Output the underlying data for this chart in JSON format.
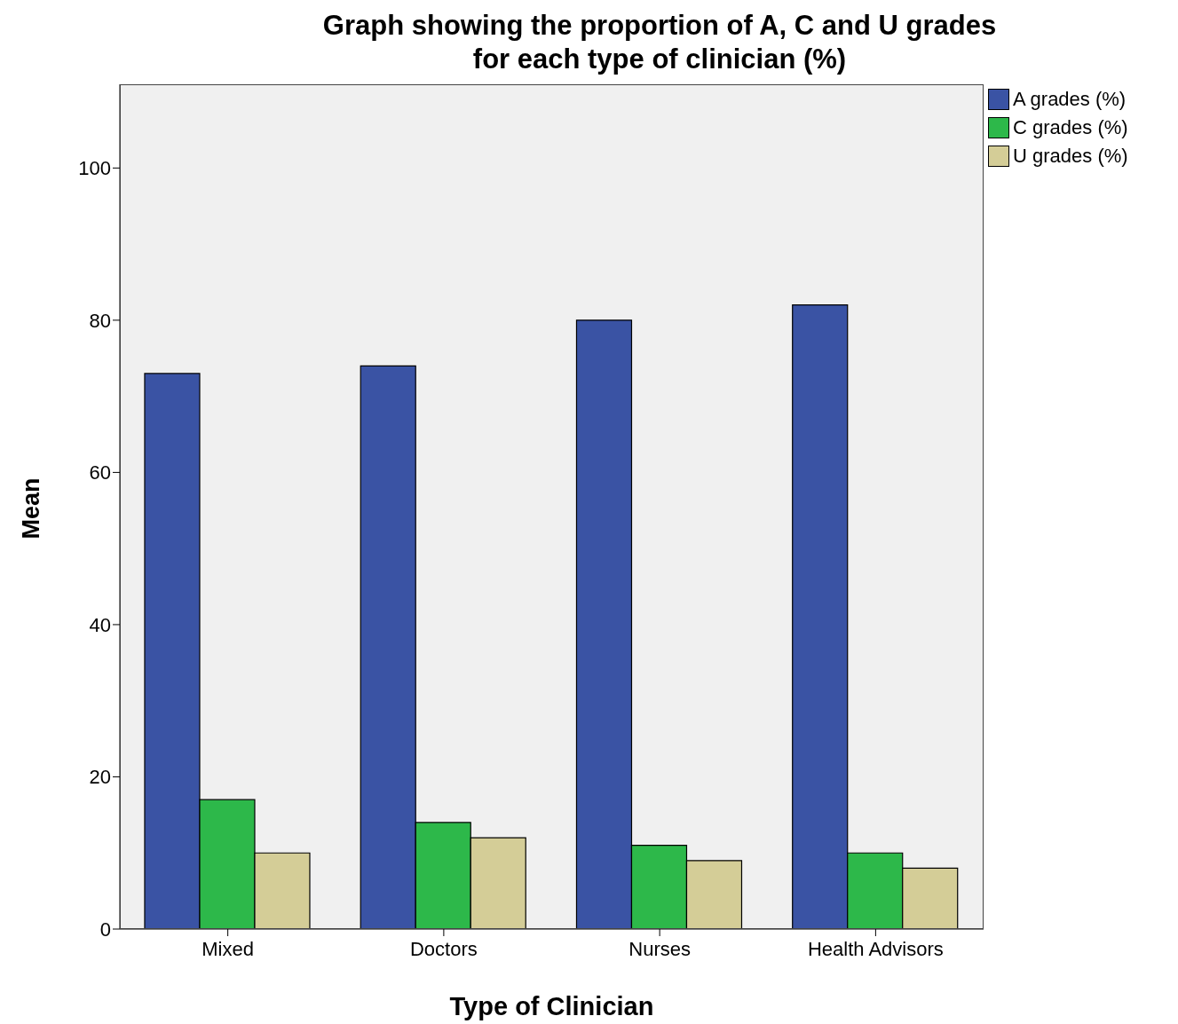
{
  "chart_data": {
    "type": "bar",
    "title": "Graph showing the proportion of A, C and U grades\nfor each type of clinician (%)",
    "xlabel": "Type of Clinician",
    "ylabel": "Mean",
    "categories": [
      "Mixed",
      "Doctors",
      "Nurses",
      "Health Advisors"
    ],
    "series": [
      {
        "name": "A grades (%)",
        "color": "#3a53a4",
        "values": [
          73,
          74,
          80,
          82
        ]
      },
      {
        "name": "C grades (%)",
        "color": "#2db84a",
        "values": [
          17,
          14,
          11,
          10
        ]
      },
      {
        "name": "U grades (%)",
        "color": "#d4cd97",
        "values": [
          10,
          12,
          9,
          8
        ]
      }
    ],
    "ylim": [
      0,
      111
    ],
    "yticks": [
      0,
      20,
      40,
      60,
      80,
      100
    ],
    "grid": false,
    "legend": "top right"
  }
}
